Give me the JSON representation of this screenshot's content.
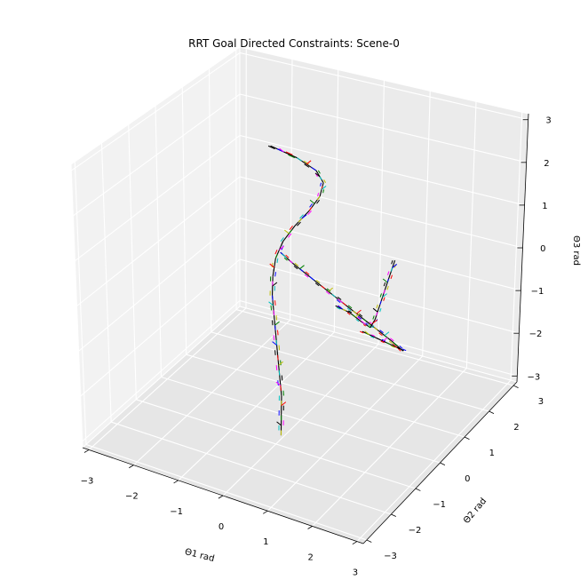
{
  "chart_data": {
    "type": "scatter",
    "projection": "3d",
    "title": "RRT Goal Directed Constraints: Scene-0",
    "xlabel": "Θ1 rad",
    "ylabel": "Θ2 rad",
    "zlabel": "Θ3 rad",
    "xlim": [
      -3.14,
      3.14
    ],
    "ylim": [
      -3.14,
      3.14
    ],
    "zlim": [
      -3.14,
      3.14
    ],
    "x_ticks": [
      "−3",
      "−2",
      "−1",
      "0",
      "1",
      "2",
      "3"
    ],
    "y_ticks": [
      "−3",
      "−2",
      "−1",
      "0",
      "1",
      "2",
      "3"
    ],
    "z_ticks": [
      "−3",
      "−2",
      "−1",
      "0",
      "1",
      "2",
      "3"
    ],
    "grid": true,
    "legend": "none",
    "colors": [
      "#000000",
      "#0000ff",
      "#ff0000",
      "#008000",
      "#ff00ff",
      "#00bfbf",
      "#bfbf00"
    ],
    "series": [
      {
        "values": [
          [
            -0.6,
            0.0,
            2.9
          ],
          [
            -0.2,
            0.3,
            2.6
          ],
          [
            0.1,
            0.5,
            2.3
          ],
          [
            0.2,
            0.6,
            2.0
          ],
          [
            0.15,
            0.55,
            1.7
          ],
          [
            0.0,
            0.4,
            1.4
          ],
          [
            -0.2,
            0.2,
            1.1
          ],
          [
            -0.35,
            0.0,
            0.8
          ],
          [
            -0.4,
            -0.2,
            0.5
          ],
          [
            -0.35,
            -0.4,
            0.2
          ],
          [
            -0.25,
            -0.6,
            -0.1
          ],
          [
            -0.1,
            -0.8,
            -0.4
          ],
          [
            0.05,
            -1.0,
            -0.7
          ],
          [
            0.2,
            -1.2,
            -1.0
          ],
          [
            0.35,
            -1.4,
            -1.3
          ],
          [
            0.5,
            -1.6,
            -1.6
          ],
          [
            0.6,
            -1.8,
            -1.9
          ],
          [
            0.7,
            -2.0,
            -2.2
          ]
        ]
      },
      {
        "values": [
          [
            -0.35,
            -0.1,
            0.6
          ],
          [
            -0.2,
            0.1,
            0.3
          ],
          [
            0.0,
            0.3,
            0.0
          ],
          [
            0.2,
            0.5,
            -0.3
          ],
          [
            0.4,
            0.7,
            -0.6
          ],
          [
            0.6,
            0.9,
            -0.9
          ],
          [
            0.8,
            1.1,
            -1.2
          ],
          [
            1.0,
            1.3,
            -1.5
          ],
          [
            1.2,
            1.5,
            -1.8
          ],
          [
            1.35,
            1.7,
            -2.1
          ]
        ]
      },
      {
        "values": [
          [
            0.4,
            0.7,
            -0.8
          ],
          [
            0.6,
            0.9,
            -1.0
          ],
          [
            0.8,
            1.0,
            -1.2
          ],
          [
            0.95,
            1.1,
            -1.35
          ],
          [
            1.0,
            1.2,
            -1.2
          ],
          [
            1.05,
            1.3,
            -0.9
          ],
          [
            1.1,
            1.4,
            -0.6
          ],
          [
            1.15,
            1.5,
            -0.3
          ],
          [
            1.2,
            1.6,
            0.0
          ]
        ]
      },
      {
        "values": [
          [
            0.6,
            1.4,
            -1.7
          ],
          [
            0.8,
            1.6,
            -1.9
          ],
          [
            1.0,
            1.8,
            -2.1
          ],
          [
            1.2,
            2.0,
            -2.3
          ]
        ]
      }
    ]
  }
}
